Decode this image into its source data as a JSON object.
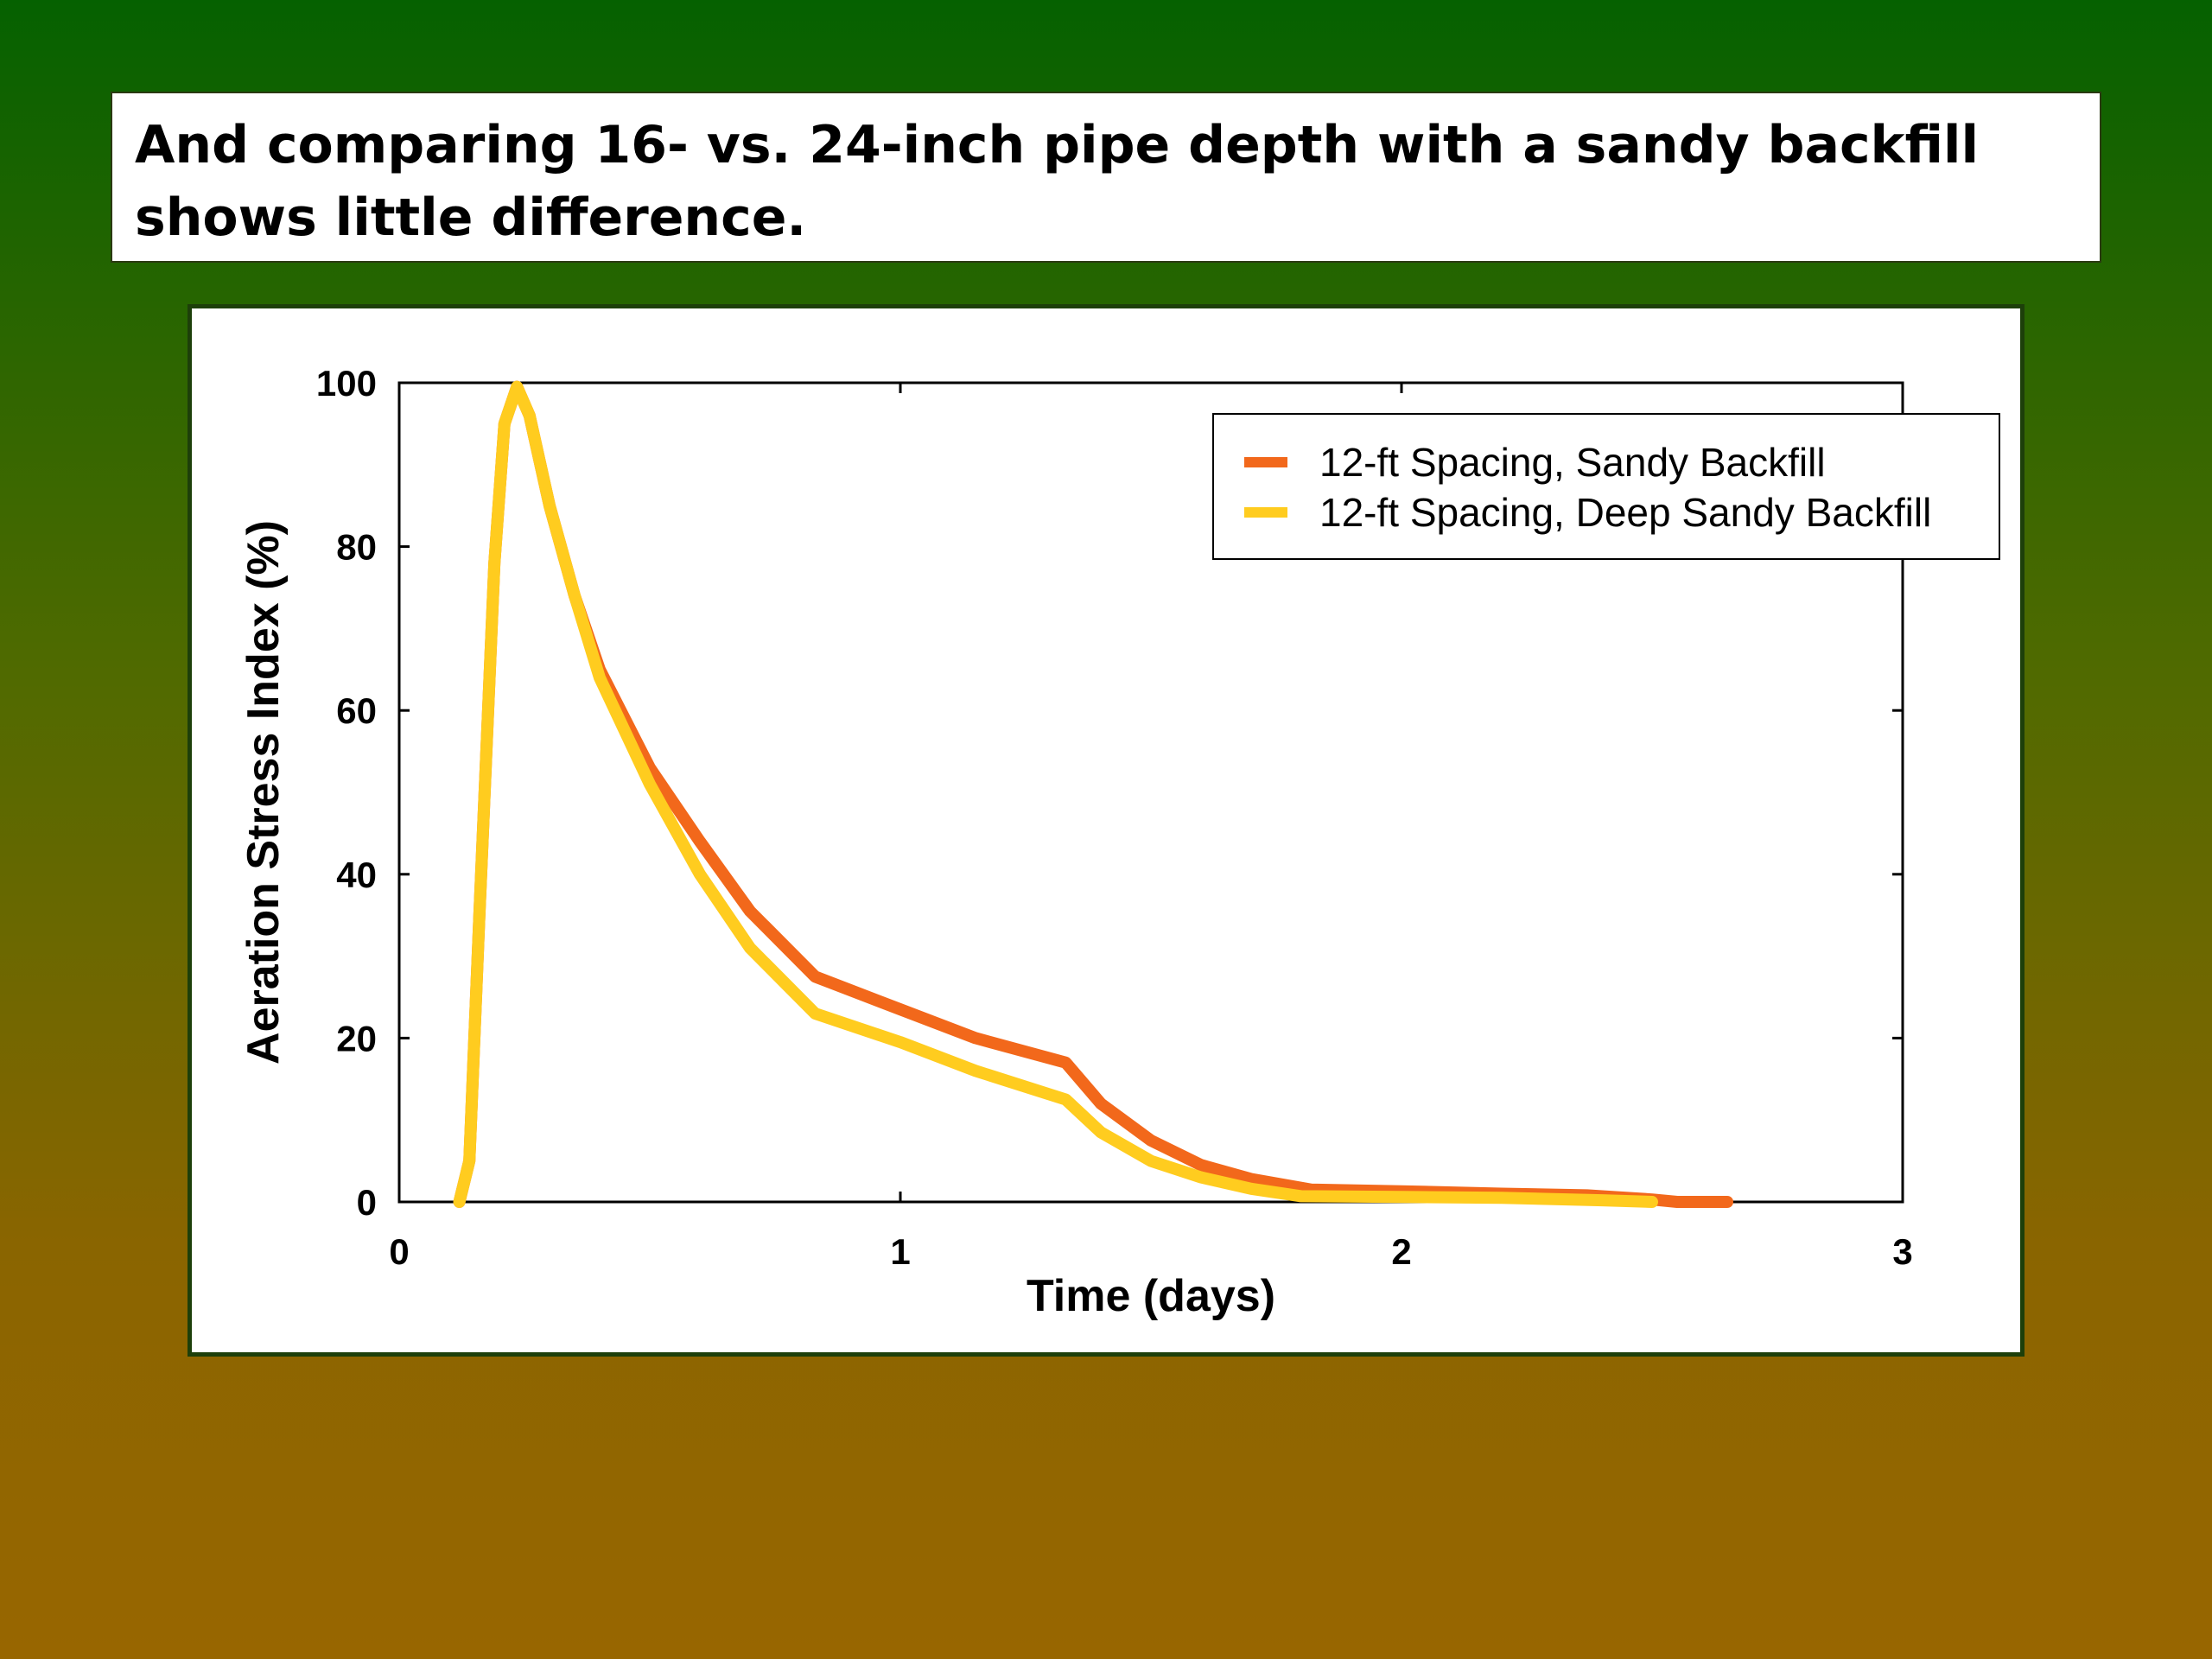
{
  "slide": {
    "title": "And comparing 16- vs. 24-inch pipe depth with a sandy backfill shows little difference."
  },
  "colors": {
    "series_1": "#f2681b",
    "series_2": "#ffcc1f"
  },
  "chart_data": {
    "type": "line",
    "title": "",
    "xlabel": "Time (days)",
    "ylabel": "Aeration Stress Index (%)",
    "xlim": [
      0,
      3
    ],
    "ylim": [
      0,
      100
    ],
    "xticks": [
      "0",
      "1",
      "2",
      "3"
    ],
    "yticks": [
      "0",
      "20",
      "40",
      "60",
      "80",
      "100"
    ],
    "grid": false,
    "legend_position": "top-right",
    "series": [
      {
        "name": "12-ft Spacing, Sandy Backfill",
        "points": [
          [
            0.12,
            0
          ],
          [
            0.14,
            5
          ],
          [
            0.16,
            35
          ],
          [
            0.19,
            78
          ],
          [
            0.21,
            95
          ],
          [
            0.235,
            99.5
          ],
          [
            0.26,
            96
          ],
          [
            0.3,
            85
          ],
          [
            0.35,
            74
          ],
          [
            0.4,
            65
          ],
          [
            0.5,
            53
          ],
          [
            0.6,
            44
          ],
          [
            0.7,
            35.5
          ],
          [
            0.83,
            27.5
          ],
          [
            1.0,
            23.5
          ],
          [
            1.15,
            20
          ],
          [
            1.33,
            17
          ],
          [
            1.4,
            12
          ],
          [
            1.5,
            7.5
          ],
          [
            1.6,
            4.5
          ],
          [
            1.7,
            2.8
          ],
          [
            1.82,
            1.5
          ],
          [
            2.0,
            1.3
          ],
          [
            2.2,
            1.0
          ],
          [
            2.37,
            0.8
          ],
          [
            2.5,
            0.3
          ],
          [
            2.55,
            0
          ],
          [
            2.65,
            0
          ]
        ]
      },
      {
        "name": "12-ft Spacing, Deep Sandy Backfill",
        "points": [
          [
            0.12,
            0
          ],
          [
            0.14,
            5
          ],
          [
            0.16,
            35
          ],
          [
            0.19,
            78
          ],
          [
            0.21,
            95
          ],
          [
            0.235,
            99.5
          ],
          [
            0.26,
            96
          ],
          [
            0.3,
            85
          ],
          [
            0.35,
            74
          ],
          [
            0.4,
            64
          ],
          [
            0.5,
            51
          ],
          [
            0.6,
            40
          ],
          [
            0.7,
            31
          ],
          [
            0.83,
            23
          ],
          [
            1.0,
            19.5
          ],
          [
            1.15,
            16
          ],
          [
            1.33,
            12.5
          ],
          [
            1.4,
            8.5
          ],
          [
            1.5,
            5
          ],
          [
            1.6,
            3
          ],
          [
            1.7,
            1.6
          ],
          [
            1.8,
            0.7
          ],
          [
            2.0,
            0.6
          ],
          [
            2.2,
            0.5
          ],
          [
            2.4,
            0.2
          ],
          [
            2.5,
            0
          ]
        ]
      }
    ]
  }
}
